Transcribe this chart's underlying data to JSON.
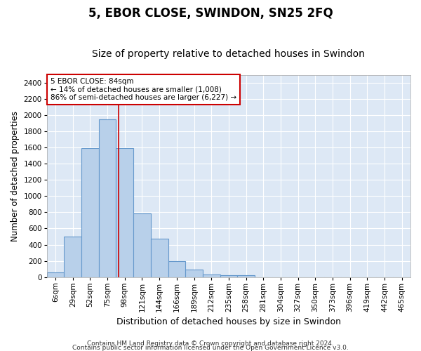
{
  "title": "5, EBOR CLOSE, SWINDON, SN25 2FQ",
  "subtitle": "Size of property relative to detached houses in Swindon",
  "xlabel": "Distribution of detached houses by size in Swindon",
  "ylabel": "Number of detached properties",
  "categories": [
    "6sqm",
    "29sqm",
    "52sqm",
    "75sqm",
    "98sqm",
    "121sqm",
    "144sqm",
    "166sqm",
    "189sqm",
    "212sqm",
    "235sqm",
    "258sqm",
    "281sqm",
    "304sqm",
    "327sqm",
    "350sqm",
    "373sqm",
    "396sqm",
    "419sqm",
    "442sqm",
    "465sqm"
  ],
  "bar_values": [
    60,
    500,
    1590,
    1950,
    1590,
    790,
    470,
    195,
    90,
    35,
    25,
    20,
    0,
    0,
    0,
    0,
    0,
    0,
    0,
    0,
    0
  ],
  "bar_color": "#b8d0ea",
  "bar_edge_color": "#6699cc",
  "bar_edge_width": 0.8,
  "plot_bg_color": "#dde8f5",
  "fig_bg_color": "#ffffff",
  "grid_color": "#ffffff",
  "ylim": [
    0,
    2500
  ],
  "yticks": [
    0,
    200,
    400,
    600,
    800,
    1000,
    1200,
    1400,
    1600,
    1800,
    2000,
    2200,
    2400
  ],
  "red_line_x": 3.63,
  "annotation_text": "5 EBOR CLOSE: 84sqm\n← 14% of detached houses are smaller (1,008)\n86% of semi-detached houses are larger (6,227) →",
  "annotation_box_color": "#ffffff",
  "annotation_border_color": "#cc0000",
  "footer_line1": "Contains HM Land Registry data © Crown copyright and database right 2024.",
  "footer_line2": "Contains public sector information licensed under the Open Government Licence v3.0.",
  "title_fontsize": 12,
  "subtitle_fontsize": 10,
  "xlabel_fontsize": 9,
  "ylabel_fontsize": 8.5,
  "tick_fontsize": 7.5,
  "footer_fontsize": 6.5
}
